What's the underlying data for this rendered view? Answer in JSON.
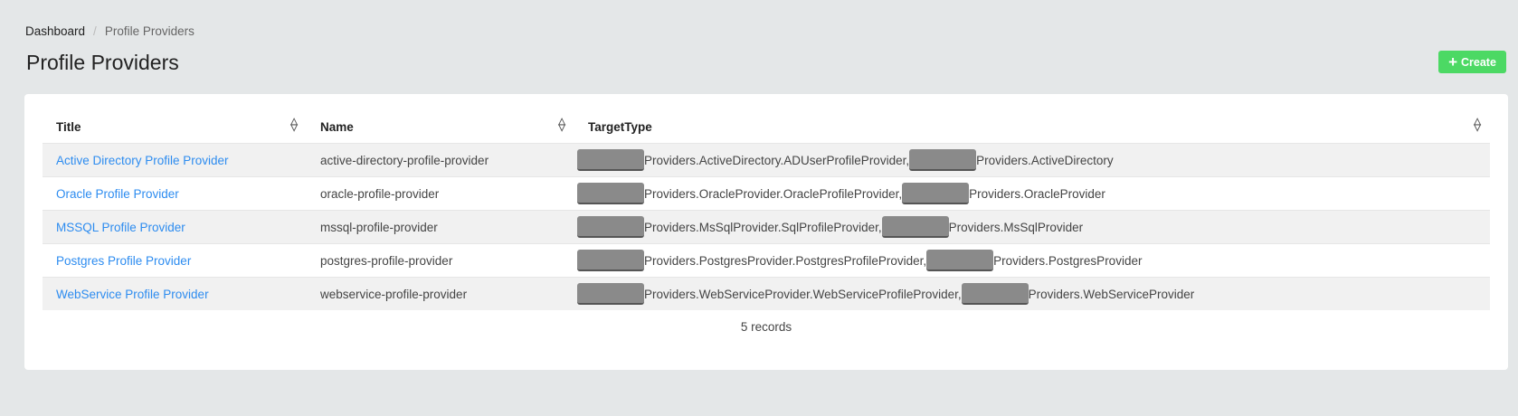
{
  "breadcrumb": {
    "home": "Dashboard",
    "separator": "/",
    "current": "Profile Providers"
  },
  "page_title": "Profile Providers",
  "create_button": {
    "icon": "plus-icon",
    "label": "Create",
    "color": "#4cd964"
  },
  "table": {
    "headers": [
      "Title",
      "Name",
      "TargetType"
    ],
    "rows": [
      {
        "title": "Active Directory Profile Provider",
        "name": "active-directory-profile-provider",
        "type_a": "Providers.ActiveDirectory.ADUserProfileProvider,",
        "type_b": "Providers.ActiveDirectory"
      },
      {
        "title": "Oracle Profile Provider",
        "name": "oracle-profile-provider",
        "type_a": "Providers.OracleProvider.OracleProfileProvider,",
        "type_b": "Providers.OracleProvider"
      },
      {
        "title": "MSSQL Profile Provider",
        "name": "mssql-profile-provider",
        "type_a": "Providers.MsSqlProvider.SqlProfileProvider,",
        "type_b": "Providers.MsSqlProvider"
      },
      {
        "title": "Postgres Profile Provider",
        "name": "postgres-profile-provider",
        "type_a": "Providers.PostgresProvider.PostgresProfileProvider,",
        "type_b": "Providers.PostgresProvider"
      },
      {
        "title": "WebService Profile Provider",
        "name": "webservice-profile-provider",
        "type_a": "Providers.WebServiceProvider.WebServiceProfileProvider,",
        "type_b": "Providers.WebServiceProvider"
      }
    ],
    "footer": "5 records"
  },
  "colors": {
    "link": "#2d8cf0",
    "background": "#e4e7e8",
    "redaction": "#8a8a8a"
  }
}
